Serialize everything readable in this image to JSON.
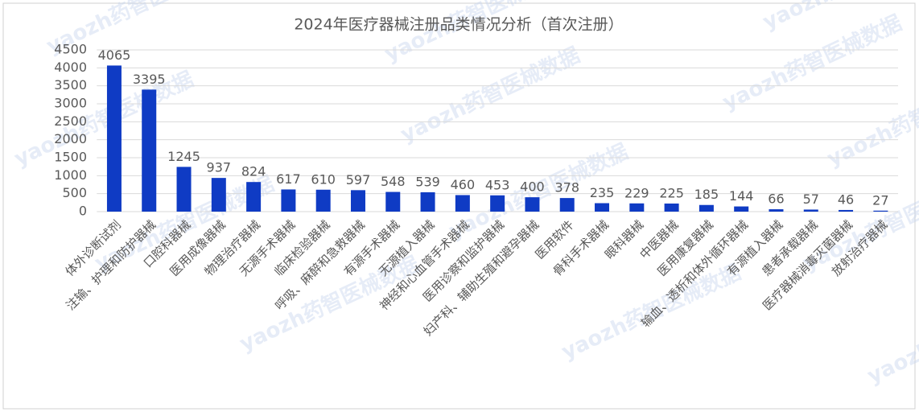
{
  "chart_data": {
    "type": "bar",
    "title": "2024年医疗器械注册品类情况分析（首次注册）",
    "watermark": "yaozh药智医械数据",
    "categories": [
      "体外诊断试剂",
      "注输、护理和防护器械",
      "口腔科器械",
      "医用成像器械",
      "物理治疗器械",
      "无源手术器械",
      "临床检验器械",
      "呼吸、麻醉和急救器械",
      "有源手术器械",
      "无源植入器械",
      "神经和心血管手术器械",
      "医用诊察和监护器械",
      "妇产科、辅助生殖和避孕器械",
      "医用软件",
      "骨科手术器械",
      "眼科器械",
      "中医器械",
      "医用康复器械",
      "输血、透析和体外循环器械",
      "有源植入器械",
      "患者承载器械",
      "医疗器械消毒灭菌器械",
      "放射治疗器械"
    ],
    "values": [
      4065,
      3395,
      1245,
      937,
      824,
      617,
      610,
      597,
      548,
      539,
      460,
      453,
      400,
      378,
      235,
      229,
      225,
      185,
      144,
      66,
      57,
      46,
      27
    ],
    "color": "#0f3bc4",
    "ylim": [
      0,
      4500
    ],
    "yticks": [
      0,
      500,
      1000,
      1500,
      2000,
      2500,
      3000,
      3500,
      4000,
      4500
    ],
    "grid": true
  }
}
